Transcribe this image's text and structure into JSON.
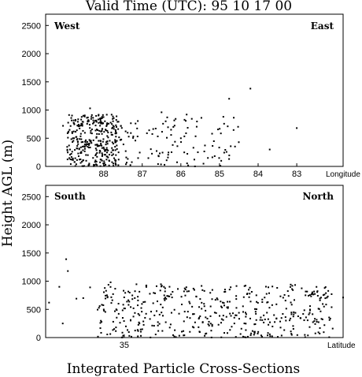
{
  "title": "Valid Time (UTC):  95 10 17 00",
  "footer": "Integrated Particle Cross-Sections",
  "ylabel": "Height AGL (m)",
  "chart_data": [
    {
      "type": "scatter",
      "panel": "top",
      "left_label": "West",
      "right_label": "East",
      "xlabel": "Longitude",
      "x_direction": "reversed",
      "xlim": [
        89.5,
        81.8
      ],
      "ylim": [
        0,
        2700
      ],
      "x_ticks": [
        88,
        87,
        86,
        85,
        84,
        83
      ],
      "y_ticks": [
        0,
        500,
        1000,
        1500,
        2000,
        2500
      ],
      "grid": false,
      "points": [
        [
          88.35,
          1030
        ],
        [
          89.05,
          720
        ],
        [
          84.75,
          1200
        ],
        [
          84.2,
          1380
        ],
        [
          83.0,
          680
        ],
        [
          84.9,
          880
        ],
        [
          85.85,
          920
        ],
        [
          86.5,
          960
        ],
        [
          85.3,
          150
        ],
        [
          86.0,
          500
        ],
        [
          84.5,
          430
        ],
        [
          83.7,
          300
        ]
      ]
    },
    {
      "type": "scatter",
      "panel": "bottom",
      "left_label": "South",
      "right_label": "North",
      "xlabel": "Latitude",
      "x_direction": "normal",
      "xlim": [
        32.7,
        41.4
      ],
      "ylim": [
        0,
        2700
      ],
      "x_ticks": [
        35
      ],
      "y_ticks": [
        0,
        500,
        1000,
        1500,
        2000,
        2500
      ],
      "grid": false,
      "points": [
        [
          33.3,
          1390
        ],
        [
          33.35,
          1180
        ],
        [
          32.8,
          620
        ],
        [
          33.1,
          900
        ],
        [
          33.6,
          690
        ],
        [
          34.0,
          890
        ],
        [
          34.3,
          260
        ],
        [
          40.3,
          750
        ],
        [
          41.4,
          710
        ],
        [
          33.2,
          250
        ],
        [
          33.8,
          700
        ],
        [
          34.6,
          980
        ]
      ]
    }
  ]
}
